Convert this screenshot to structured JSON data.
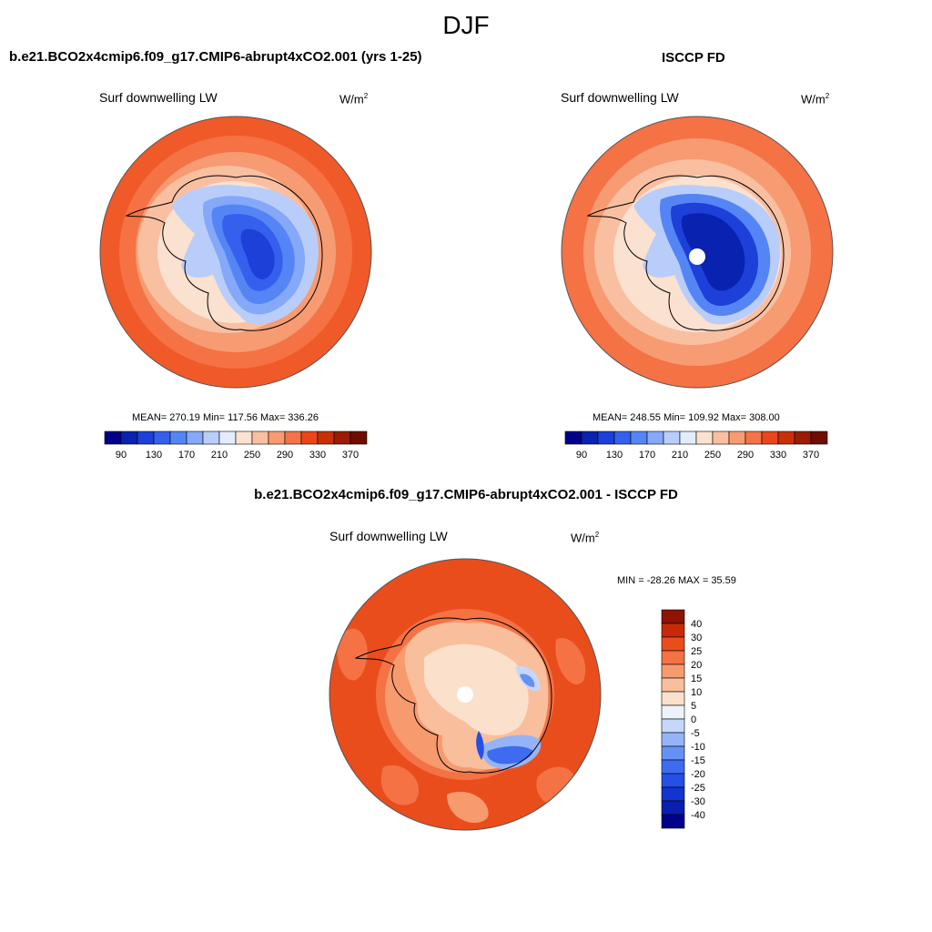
{
  "season": "DJF",
  "panels": [
    {
      "title": "b.e21.BCO2x4cmip6.f09_g17.CMIP6-abrupt4xCO2.001 (yrs 1-25)",
      "field": "Surf downwelling LW",
      "units_base": "W/m",
      "units_exp": "2",
      "stats": "MEAN= 270.19  Min= 117.56  Max= 336.26",
      "colorbar_labels": [
        "90",
        "130",
        "170",
        "210",
        "250",
        "290",
        "330",
        "370"
      ]
    },
    {
      "title": "ISCCP FD",
      "field": "Surf downwelling LW",
      "units_base": "W/m",
      "units_exp": "2",
      "stats": "MEAN= 248.55  Min= 109.92  Max= 308.00",
      "colorbar_labels": [
        "90",
        "130",
        "170",
        "210",
        "250",
        "290",
        "330",
        "370"
      ]
    },
    {
      "title": "b.e21.BCO2x4cmip6.f09_g17.CMIP6-abrupt4xCO2.001 - ISCCP FD",
      "field": "Surf downwelling LW",
      "units_base": "W/m",
      "units_exp": "2",
      "stats": "MIN = -28.26 MAX =  35.59",
      "colorbar_labels": [
        "40",
        "30",
        "25",
        "20",
        "15",
        "10",
        "5",
        "0",
        "-5",
        "-10",
        "-15",
        "-20",
        "-25",
        "-30",
        "-40"
      ]
    }
  ],
  "chart_data": [
    {
      "type": "heatmap",
      "projection": "south-polar-stereographic",
      "title": "b.e21.BCO2x4cmip6.f09_g17.CMIP6-abrupt4xCO2.001 (yrs 1-25)",
      "variable": "Surf downwelling LW",
      "units": "W/m2",
      "mean": 270.19,
      "min": 117.56,
      "max": 336.26,
      "levels": [
        90,
        110,
        130,
        150,
        170,
        190,
        210,
        230,
        250,
        270,
        290,
        310,
        330,
        350,
        370
      ],
      "colors": [
        "#00008b",
        "#0a22b0",
        "#1c40d8",
        "#3560ee",
        "#5585f5",
        "#85a8f8",
        "#b9cdfb",
        "#e3ecfd",
        "#fbe1cf",
        "#f9bfa1",
        "#f79b72",
        "#f57349",
        "#e9461b",
        "#c83008",
        "#9a1c04",
        "#6e0e00"
      ]
    },
    {
      "type": "heatmap",
      "projection": "south-polar-stereographic",
      "title": "ISCCP FD",
      "variable": "Surf downwelling LW",
      "units": "W/m2",
      "mean": 248.55,
      "min": 109.92,
      "max": 308.0,
      "levels": [
        90,
        110,
        130,
        150,
        170,
        190,
        210,
        230,
        250,
        270,
        290,
        310,
        330,
        350,
        370
      ],
      "colors": [
        "#00008b",
        "#0a22b0",
        "#1c40d8",
        "#3560ee",
        "#5585f5",
        "#85a8f8",
        "#b9cdfb",
        "#e3ecfd",
        "#fbe1cf",
        "#f9bfa1",
        "#f79b72",
        "#f57349",
        "#e9461b",
        "#c83008",
        "#9a1c04",
        "#6e0e00"
      ]
    },
    {
      "type": "heatmap",
      "projection": "south-polar-stereographic",
      "title": "b.e21.BCO2x4cmip6.f09_g17.CMIP6-abrupt4xCO2.001 - ISCCP FD",
      "variable": "Surf downwelling LW",
      "units": "W/m2",
      "min": -28.26,
      "max": 35.59,
      "levels": [
        -40,
        -30,
        -25,
        -20,
        -15,
        -10,
        -5,
        0,
        5,
        10,
        15,
        20,
        25,
        30,
        40
      ],
      "colors": [
        "#00008b",
        "#0a1fb0",
        "#1234d0",
        "#2350e6",
        "#3d6cf0",
        "#6590f5",
        "#95b4f8",
        "#c6d7fb",
        "#eef2fc",
        "#fbe0cc",
        "#f9bf9c",
        "#f79a6e",
        "#f47244",
        "#ea4d1c",
        "#c92a06",
        "#8e1400"
      ]
    }
  ]
}
